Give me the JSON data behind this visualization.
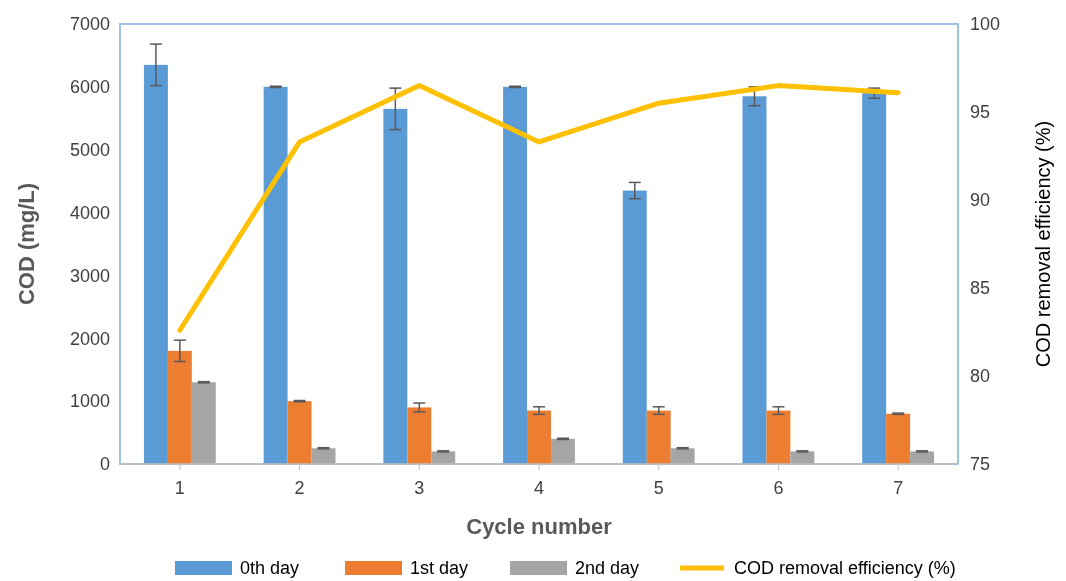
{
  "chart_data": {
    "type": "bar",
    "xlabel": "Cycle number",
    "ylabel": "COD (mg/L)",
    "y2label": "COD removal  efficiency  (%)",
    "categories": [
      "1",
      "2",
      "3",
      "4",
      "5",
      "6",
      "7"
    ],
    "series": [
      {
        "name": "0th day",
        "color": "#5b9bd5",
        "values": [
          6350,
          6000,
          5650,
          6000,
          4350,
          5850,
          5900
        ],
        "errors": [
          330,
          10,
          330,
          10,
          130,
          150,
          80
        ]
      },
      {
        "name": "1st day",
        "color": "#ed7d31",
        "values": [
          1800,
          1000,
          900,
          850,
          850,
          850,
          800
        ],
        "errors": [
          170,
          10,
          70,
          60,
          60,
          60,
          10
        ]
      },
      {
        "name": "2nd day",
        "color": "#a5a5a5",
        "values": [
          1300,
          250,
          200,
          400,
          250,
          200,
          200
        ],
        "errors": [
          10,
          10,
          10,
          10,
          10,
          10,
          10
        ]
      },
      {
        "name": "COD removal efficiency (%)",
        "type": "line",
        "axis": "y2",
        "color": "#ffc000",
        "values": [
          82.6,
          93.3,
          96.5,
          93.3,
          95.5,
          96.5,
          96.1
        ]
      }
    ],
    "ylim": [
      0,
      7000
    ],
    "yticks": [
      0,
      1000,
      2000,
      3000,
      4000,
      5000,
      6000,
      7000
    ],
    "y2lim": [
      75,
      100
    ],
    "y2ticks": [
      75,
      80,
      85,
      90,
      95,
      100
    ],
    "legend": "bottom",
    "grid": false,
    "marker": "none"
  }
}
